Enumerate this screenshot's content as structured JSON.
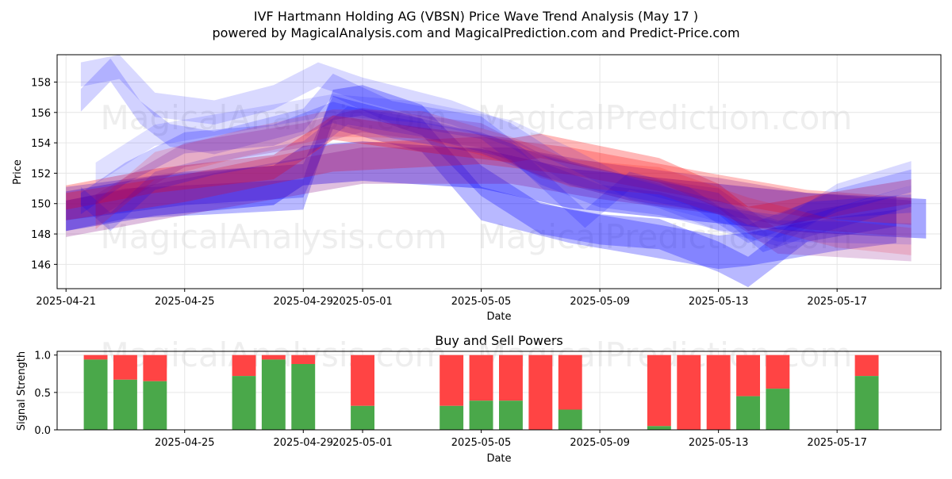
{
  "chart_data": [
    {
      "type": "area",
      "title": "IVF Hartmann Holding AG (VBSN) Price Wave Trend Analysis (May 17 )",
      "subtitle": "powered by MagicalAnalysis.com and MagicalPrediction.com and Predict-Price.com",
      "xlabel": "Date",
      "ylabel": "Price",
      "x_ticks": [
        "2025-04-21",
        "2025-04-25",
        "2025-04-29",
        "2025-05-01",
        "2025-05-05",
        "2025-05-09",
        "2025-05-13",
        "2025-05-17"
      ],
      "x_tick_days": [
        0,
        4,
        8,
        10,
        14,
        18,
        22,
        26
      ],
      "xlim_days": [
        -0.3,
        29.5
      ],
      "y_ticks": [
        146,
        148,
        150,
        152,
        154,
        156,
        158
      ],
      "ylim": [
        144.4,
        159.8
      ],
      "grid": true,
      "watermarks": [
        "MagicalAnalysis.com",
        "MagicalPrediction.com"
      ],
      "bands": [
        {
          "color": "#0000ff",
          "alpha": 0.35,
          "width": 2.6,
          "points": [
            [
              0,
              149.5
            ],
            [
              3,
              150.5
            ],
            [
              7,
              151.2
            ],
            [
              8,
              152.5
            ],
            [
              10,
              152.8
            ],
            [
              14,
              152.3
            ],
            [
              17,
              151.0
            ],
            [
              21,
              150.2
            ],
            [
              25,
              149.4
            ],
            [
              29,
              149.0
            ]
          ]
        },
        {
          "color": "#0000ff",
          "alpha": 0.28,
          "width": 2.0,
          "points": [
            [
              0,
              149.2
            ],
            [
              2,
              150.0
            ],
            [
              8,
              150.6
            ],
            [
              9,
              156.5
            ],
            [
              10,
              156.8
            ],
            [
              12,
              155.5
            ],
            [
              14,
              151.5
            ],
            [
              16,
              149.0
            ],
            [
              18,
              148.3
            ],
            [
              20,
              148.0
            ],
            [
              22,
              146.5
            ],
            [
              23,
              145.5
            ],
            [
              25,
              148.5
            ],
            [
              28,
              149.5
            ]
          ]
        },
        {
          "color": "#0000ff",
          "alpha": 0.28,
          "width": 2.2,
          "points": [
            [
              0,
              150.0
            ],
            [
              4,
              151.0
            ],
            [
              8,
              151.5
            ],
            [
              9,
              156.0
            ],
            [
              10,
              155.5
            ],
            [
              12,
              154.5
            ],
            [
              14,
              150.0
            ],
            [
              17,
              148.5
            ],
            [
              20,
              147.5
            ],
            [
              22,
              146.8
            ],
            [
              23,
              147.0
            ],
            [
              26,
              148.0
            ],
            [
              28,
              148.5
            ]
          ]
        },
        {
          "color": "#ff0000",
          "alpha": 0.28,
          "width": 1.6,
          "points": [
            [
              0,
              150.4
            ],
            [
              3,
              151.5
            ],
            [
              7,
              152.4
            ],
            [
              9,
              155.0
            ],
            [
              12,
              154.2
            ],
            [
              15,
              153.5
            ],
            [
              16,
              153.8
            ],
            [
              20,
              152.2
            ],
            [
              22,
              150.5
            ],
            [
              23,
              149.0
            ],
            [
              26,
              150.0
            ],
            [
              28.5,
              150.8
            ]
          ]
        },
        {
          "color": "#ff0000",
          "alpha": 0.25,
          "width": 1.8,
          "points": [
            [
              0,
              149.8
            ],
            [
              4,
              151.0
            ],
            [
              9,
              153.0
            ],
            [
              14,
              153.5
            ],
            [
              17,
              152.8
            ],
            [
              22,
              151.0
            ],
            [
              25,
              150.0
            ],
            [
              28.5,
              149.5
            ]
          ]
        },
        {
          "color": "#800080",
          "alpha": 0.25,
          "width": 2.4,
          "points": [
            [
              0,
              149.0
            ],
            [
              5,
              150.8
            ],
            [
              10,
              152.5
            ],
            [
              15,
              152.5
            ],
            [
              18,
              151.5
            ],
            [
              22,
              150.5
            ],
            [
              25,
              149.5
            ],
            [
              28.5,
              149.0
            ]
          ]
        },
        {
          "color": "#0000ff",
          "alpha": 0.18,
          "width": 1.5,
          "points": [
            [
              0.5,
              156.8
            ],
            [
              1.5,
              158.8
            ],
            [
              2.5,
              156.0
            ],
            [
              3.5,
              154.5
            ],
            [
              5,
              154.0
            ],
            [
              8,
              155.5
            ],
            [
              9,
              157.8
            ],
            [
              11,
              156.0
            ],
            [
              14,
              155.0
            ],
            [
              16,
              152.0
            ],
            [
              18,
              150.5
            ],
            [
              20,
              150.0
            ],
            [
              22,
              149.0
            ],
            [
              24,
              148.5
            ],
            [
              26,
              150.2
            ],
            [
              28.5,
              151.5
            ]
          ]
        },
        {
          "color": "#0000ff",
          "alpha": 0.15,
          "width": 1.6,
          "points": [
            [
              0.5,
              158.5
            ],
            [
              1.8,
              159.0
            ],
            [
              3,
              156.5
            ],
            [
              5,
              156.0
            ],
            [
              7,
              157.0
            ],
            [
              8.5,
              158.5
            ],
            [
              10,
              157.5
            ],
            [
              13,
              156.0
            ],
            [
              15,
              154.5
            ],
            [
              17,
              152.0
            ],
            [
              20,
              150.5
            ],
            [
              22,
              149.0
            ],
            [
              24,
              148.0
            ],
            [
              26,
              150.5
            ],
            [
              28.5,
              152.0
            ]
          ]
        },
        {
          "color": "#0000ff",
          "alpha": 0.2,
          "width": 1.4,
          "points": [
            [
              0.5,
              150.0
            ],
            [
              2,
              152.0
            ],
            [
              4,
              154.0
            ],
            [
              7,
              154.5
            ],
            [
              9,
              156.0
            ],
            [
              11,
              155.0
            ],
            [
              14,
              154.0
            ],
            [
              16,
              152.5
            ],
            [
              18,
              151.5
            ],
            [
              22,
              150.0
            ],
            [
              23.5,
              147.5
            ],
            [
              25,
              148.5
            ],
            [
              28.5,
              150.5
            ]
          ]
        },
        {
          "color": "#0000ff",
          "alpha": 0.18,
          "width": 1.2,
          "points": [
            [
              0.5,
              150.5
            ],
            [
              1.5,
              148.8
            ],
            [
              3,
              151.5
            ],
            [
              5,
              152.5
            ],
            [
              8,
              153.5
            ],
            [
              9.5,
              155.8
            ],
            [
              12,
              155.0
            ],
            [
              15,
              153.5
            ],
            [
              17.5,
              149.0
            ],
            [
              19,
              151.5
            ],
            [
              21,
              150.5
            ],
            [
              23,
              148.0
            ],
            [
              25,
              149.5
            ],
            [
              28.5,
              150.0
            ]
          ]
        },
        {
          "color": "#ff0000",
          "alpha": 0.15,
          "width": 1.8,
          "points": [
            [
              1,
              149.2
            ],
            [
              3,
              152.5
            ],
            [
              6,
              154.0
            ],
            [
              9,
              155.3
            ],
            [
              12,
              155.2
            ],
            [
              15,
              153.5
            ],
            [
              17,
              152.0
            ],
            [
              20,
              151.5
            ],
            [
              23,
              149.5
            ],
            [
              26,
              148.0
            ],
            [
              28.5,
              147.5
            ]
          ]
        },
        {
          "color": "#800080",
          "alpha": 0.2,
          "width": 1.6,
          "points": [
            [
              1,
              149.8
            ],
            [
              4,
              153.2
            ],
            [
              8,
              154.5
            ],
            [
              10,
              155.5
            ],
            [
              14,
              154.5
            ],
            [
              16,
              152.5
            ],
            [
              19,
              151.0
            ],
            [
              22,
              150.2
            ],
            [
              24,
              147.5
            ],
            [
              28.5,
              147.0
            ]
          ]
        },
        {
          "color": "#0000ff",
          "alpha": 0.12,
          "width": 1.4,
          "points": [
            [
              1,
              152.0
            ],
            [
              3,
              154.5
            ],
            [
              6,
              155.5
            ],
            [
              9,
              156.5
            ],
            [
              12,
              156.0
            ],
            [
              15,
              154.8
            ],
            [
              17,
              153.0
            ],
            [
              19,
              151.0
            ],
            [
              22,
              149.5
            ],
            [
              24,
              148.2
            ],
            [
              28.5,
              148.0
            ]
          ]
        }
      ]
    },
    {
      "type": "bar",
      "title": "Buy and Sell Powers",
      "xlabel": "Date",
      "ylabel": "Signal Strength",
      "x_ticks": [
        "2025-04-25",
        "2025-04-29",
        "2025-05-01",
        "2025-05-05",
        "2025-05-09",
        "2025-05-13",
        "2025-05-17"
      ],
      "x_tick_days": [
        4,
        8,
        10,
        14,
        18,
        22,
        26
      ],
      "xlim_days": [
        -0.3,
        29.5
      ],
      "y_ticks": [
        "0.0",
        "0.5",
        "1.0"
      ],
      "y_tick_values": [
        0,
        0.5,
        1.0
      ],
      "ylim": [
        0,
        1.05
      ],
      "grid": true,
      "buy_color": "#4aa84a",
      "sell_color": "#ff4444",
      "bars": [
        {
          "day": 1,
          "buy": 0.94
        },
        {
          "day": 2,
          "buy": 0.67
        },
        {
          "day": 3,
          "buy": 0.65
        },
        {
          "day": 6,
          "buy": 0.72
        },
        {
          "day": 7,
          "buy": 0.94
        },
        {
          "day": 8,
          "buy": 0.88
        },
        {
          "day": 10,
          "buy": 0.32
        },
        {
          "day": 13,
          "buy": 0.32
        },
        {
          "day": 14,
          "buy": 0.39
        },
        {
          "day": 15,
          "buy": 0.39
        },
        {
          "day": 16,
          "buy": 0.0
        },
        {
          "day": 17,
          "buy": 0.27
        },
        {
          "day": 20,
          "buy": 0.05
        },
        {
          "day": 21,
          "buy": 0.0
        },
        {
          "day": 22,
          "buy": 0.0
        },
        {
          "day": 23,
          "buy": 0.45
        },
        {
          "day": 24,
          "buy": 0.55
        },
        {
          "day": 27,
          "buy": 0.72
        }
      ]
    }
  ]
}
